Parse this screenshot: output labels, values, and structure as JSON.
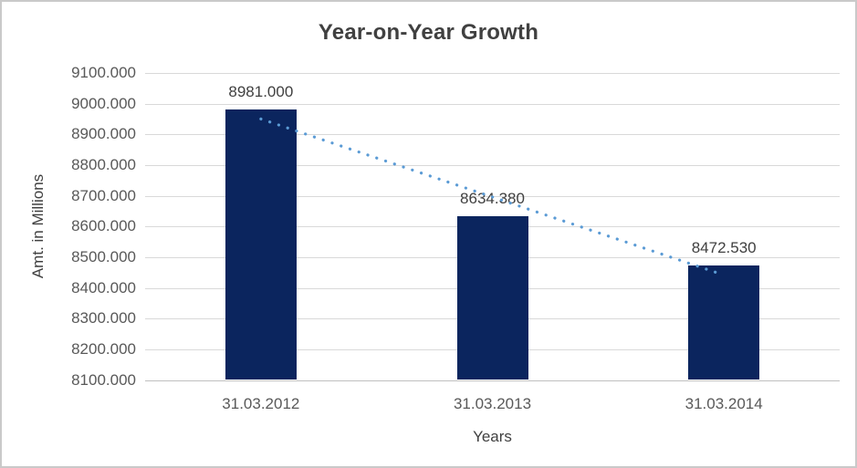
{
  "chart_data": {
    "type": "bar",
    "title": "Year-on-Year Growth",
    "xlabel": "Years",
    "ylabel": "Amt. in Millions",
    "categories": [
      "31.03.2012",
      "31.03.2013",
      "31.03.2014"
    ],
    "values": [
      8981.0,
      8634.38,
      8472.53
    ],
    "value_labels": [
      "8981.000",
      "8634.380",
      "8472.530"
    ],
    "ylim": [
      8100,
      9100
    ],
    "ytick_step": 100,
    "ytick_labels_top_to_bottom": [
      "9100.000",
      "9000.000",
      "8900.000",
      "8800.000",
      "8700.000",
      "8600.000",
      "8500.000",
      "8400.000",
      "8300.000",
      "8200.000",
      "8100.000"
    ],
    "grid": true,
    "legend": "none",
    "trendline": {
      "type": "linear",
      "style": "dotted"
    },
    "colors": {
      "bar": "#0b255e",
      "trendline": "#5b9bd5",
      "gridline": "#d9d9d9",
      "axis_line": "#bfbfbf",
      "tick_text": "#595959",
      "title_text": "#404040",
      "frame_border": "#c9c9c9",
      "background": "#ffffff"
    }
  }
}
